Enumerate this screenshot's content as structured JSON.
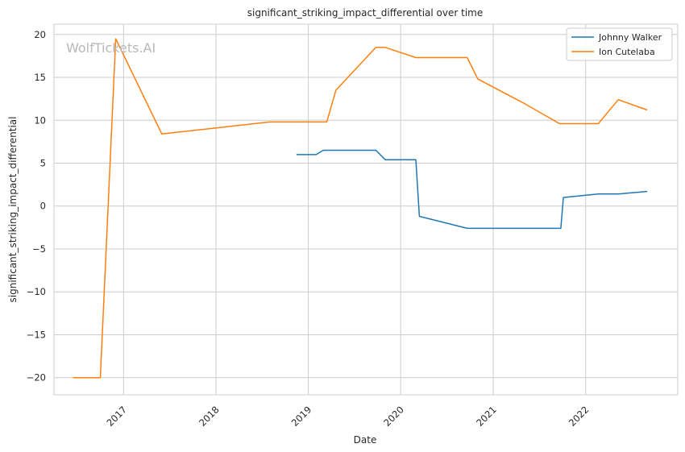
{
  "chart_data": {
    "type": "line",
    "title": "significant_striking_impact_differential over time",
    "xlabel": "Date",
    "ylabel": "significant_striking_impact_differential",
    "watermark": "WolfTickets.AI",
    "xlim": [
      "2016-04-01",
      "2022-12-31"
    ],
    "ylim": [
      -22,
      21.2
    ],
    "x_ticks": [
      "2017-01-01",
      "2018-01-01",
      "2019-01-01",
      "2020-01-01",
      "2021-01-01",
      "2022-01-01"
    ],
    "x_tick_labels": [
      "2017",
      "2018",
      "2019",
      "2020",
      "2021",
      "2022"
    ],
    "y_ticks": [
      -20,
      -15,
      -10,
      -5,
      0,
      5,
      10,
      15,
      20
    ],
    "y_tick_labels": [
      "−20",
      "−15",
      "−10",
      "−5",
      "0",
      "5",
      "10",
      "15",
      "20"
    ],
    "grid": true,
    "legend_position": "top-right",
    "series": [
      {
        "name": "Johnny Walker",
        "color": "#1f77b4",
        "points": [
          [
            "2018-11-15",
            6.0
          ],
          [
            "2019-02-01",
            6.0
          ],
          [
            "2019-03-01",
            6.5
          ],
          [
            "2019-09-25",
            6.5
          ],
          [
            "2019-11-01",
            5.4
          ],
          [
            "2020-03-01",
            5.4
          ],
          [
            "2020-03-15",
            -1.2
          ],
          [
            "2020-09-20",
            -2.6
          ],
          [
            "2021-09-25",
            -2.6
          ],
          [
            "2021-10-05",
            1.0
          ],
          [
            "2022-02-20",
            1.4
          ],
          [
            "2022-05-10",
            1.4
          ],
          [
            "2022-09-01",
            1.7
          ]
        ]
      },
      {
        "name": "Ion Cutelaba",
        "color": "#ff7f0e",
        "points": [
          [
            "2016-06-15",
            -20.0
          ],
          [
            "2016-10-01",
            -20.0
          ],
          [
            "2016-12-01",
            19.5
          ],
          [
            "2017-06-01",
            8.4
          ],
          [
            "2018-08-01",
            9.8
          ],
          [
            "2019-03-15",
            9.8
          ],
          [
            "2019-04-20",
            13.5
          ],
          [
            "2019-09-25",
            18.5
          ],
          [
            "2019-11-01",
            18.5
          ],
          [
            "2020-03-01",
            17.3
          ],
          [
            "2020-09-20",
            17.3
          ],
          [
            "2020-11-01",
            14.8
          ],
          [
            "2021-05-01",
            12.0
          ],
          [
            "2021-09-20",
            9.6
          ],
          [
            "2022-02-20",
            9.6
          ],
          [
            "2022-05-10",
            12.4
          ],
          [
            "2022-09-01",
            11.2
          ]
        ]
      }
    ]
  }
}
